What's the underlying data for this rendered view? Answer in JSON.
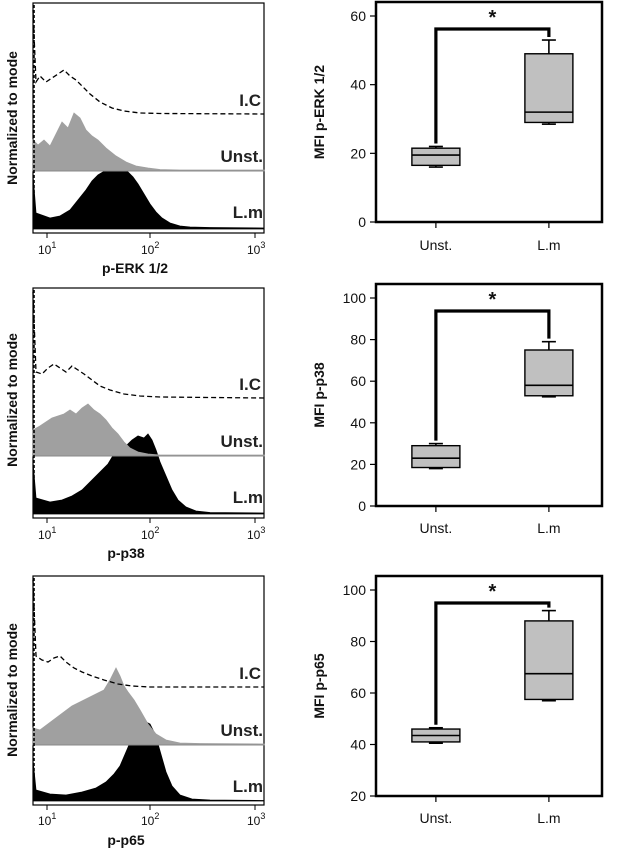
{
  "histograms": [
    {
      "xlabel": "p-ERK 1/2",
      "ylabel": "Normalized to mode",
      "series": [
        {
          "name": "I.C"
        },
        {
          "name": "Unst."
        },
        {
          "name": "L.m"
        }
      ],
      "ticks": [
        {
          "base": "10",
          "exp": "1"
        },
        {
          "base": "10",
          "exp": "2"
        },
        {
          "base": "10",
          "exp": "3"
        }
      ]
    },
    {
      "xlabel": "p-p38",
      "ylabel": "Normalized to mode",
      "series": [
        {
          "name": "I.C"
        },
        {
          "name": "Unst."
        },
        {
          "name": "L.m"
        }
      ],
      "ticks": [
        {
          "base": "10",
          "exp": "1"
        },
        {
          "base": "10",
          "exp": "2"
        },
        {
          "base": "10",
          "exp": "3"
        }
      ]
    },
    {
      "xlabel": "p-p65",
      "ylabel": "Normalized to mode",
      "series": [
        {
          "name": "I.C"
        },
        {
          "name": "Unst."
        },
        {
          "name": "L.m"
        }
      ],
      "ticks": [
        {
          "base": "10",
          "exp": "1"
        },
        {
          "base": "10",
          "exp": "2"
        },
        {
          "base": "10",
          "exp": "3"
        }
      ]
    }
  ],
  "chart_data": [
    {
      "type": "box",
      "ylabel": "MFI p-ERK 1/2",
      "ylim": [
        0,
        60
      ],
      "yticks": [
        0,
        20,
        40,
        60
      ],
      "categories": [
        "Unst.",
        "L.m"
      ],
      "boxes": [
        {
          "min": 16,
          "q1": 16.5,
          "median": 19.5,
          "q3": 21.5,
          "max": 22
        },
        {
          "min": 28.5,
          "q1": 29,
          "median": 32,
          "q3": 49,
          "max": 53
        }
      ],
      "significance": "*"
    },
    {
      "type": "box",
      "ylabel": "MFI p-p38",
      "ylim": [
        0,
        100
      ],
      "yticks": [
        0,
        20,
        40,
        60,
        80,
        100
      ],
      "categories": [
        "Unst.",
        "L.m"
      ],
      "boxes": [
        {
          "min": 18,
          "q1": 18.5,
          "median": 23,
          "q3": 29,
          "max": 30
        },
        {
          "min": 52.5,
          "q1": 53,
          "median": 58,
          "q3": 75,
          "max": 79
        }
      ],
      "significance": "*"
    },
    {
      "type": "box",
      "ylabel": "MFI p-p65",
      "ylim": [
        20,
        100
      ],
      "yticks": [
        20,
        40,
        60,
        80,
        100
      ],
      "categories": [
        "Unst.",
        "L.m"
      ],
      "boxes": [
        {
          "min": 40.5,
          "q1": 41,
          "median": 43.5,
          "q3": 46,
          "max": 46.5
        },
        {
          "min": 57,
          "q1": 57.5,
          "median": 67.5,
          "q3": 88,
          "max": 92
        }
      ],
      "significance": "*"
    }
  ]
}
